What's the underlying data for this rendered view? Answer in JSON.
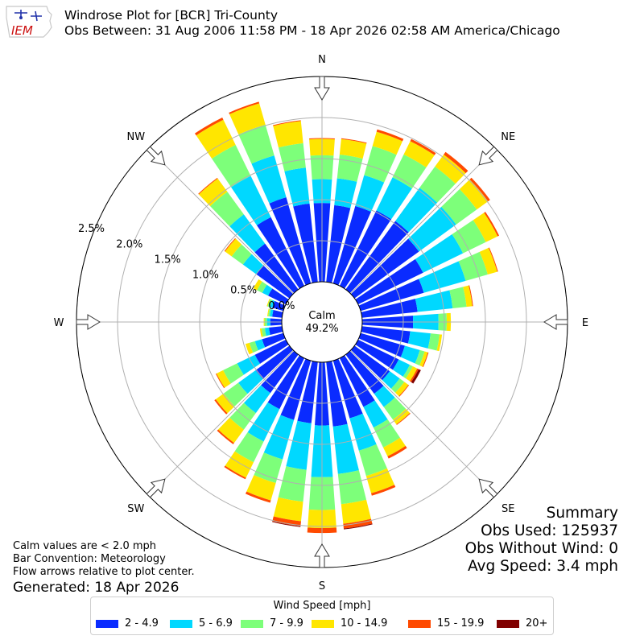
{
  "header": {
    "title": "Windrose Plot for [BCR] Tri-County",
    "subtitle": "Obs Between: 31 Aug 2006 11:58 PM - 18 Apr 2026 02:58 AM America/Chicago",
    "logo_text": "IEM"
  },
  "summary": {
    "heading": "Summary",
    "obs_used": "Obs Used: 125937",
    "obs_without_wind": "Obs Without Wind: 0",
    "avg_speed": "Avg Speed: 3.4 mph"
  },
  "notes": {
    "calm_note": "Calm values are < 2.0 mph",
    "bar_convention": "Bar Convention: Meteorology",
    "flow_arrows": "Flow arrows relative to plot center.",
    "generated": "Generated: 18 Apr 2026"
  },
  "chart_data": {
    "type": "windrose",
    "calm_label": "Calm",
    "calm_value": "49.2%",
    "cardinals": [
      "N",
      "NE",
      "E",
      "SE",
      "S",
      "SW",
      "W",
      "NW"
    ],
    "radial_ticks": [
      "0.0%",
      "0.5%",
      "1.0%",
      "1.5%",
      "2.0%",
      "2.5%"
    ],
    "radial_values": [
      0.0,
      0.5,
      1.0,
      1.5,
      2.0,
      2.5
    ],
    "rmax": 2.5,
    "direction_step_deg": 10,
    "legend_title": "Wind Speed [mph]",
    "bins": [
      {
        "label": "2 - 4.9",
        "color": "#0a2bff"
      },
      {
        "label": "5 - 6.9",
        "color": "#00d8ff"
      },
      {
        "label": "7 - 9.9",
        "color": "#7dff7a"
      },
      {
        "label": "10 - 14.9",
        "color": "#ffe600"
      },
      {
        "label": "15 - 19.9",
        "color": "#ff4a00"
      },
      {
        "label": "20+",
        "color": "#800000"
      }
    ],
    "directions": [
      {
        "dir": 0,
        "values": [
          0.96,
          0.29,
          0.29,
          0.2,
          0.01,
          0.0
        ]
      },
      {
        "dir": 10,
        "values": [
          0.94,
          0.33,
          0.29,
          0.19,
          0.01,
          0.0
        ]
      },
      {
        "dir": 20,
        "values": [
          0.98,
          0.39,
          0.37,
          0.18,
          0.03,
          0.0
        ]
      },
      {
        "dir": 30,
        "values": [
          1.02,
          0.45,
          0.31,
          0.18,
          0.03,
          0.0
        ]
      },
      {
        "dir": 40,
        "values": [
          1.03,
          0.5,
          0.32,
          0.18,
          0.04,
          0.0
        ]
      },
      {
        "dir": 50,
        "values": [
          0.97,
          0.56,
          0.31,
          0.17,
          0.03,
          0.0
        ]
      },
      {
        "dir": 60,
        "values": [
          0.88,
          0.54,
          0.31,
          0.16,
          0.02,
          0.0
        ]
      },
      {
        "dir": 70,
        "values": [
          0.8,
          0.53,
          0.28,
          0.12,
          0.01,
          0.0
        ]
      },
      {
        "dir": 80,
        "values": [
          0.68,
          0.43,
          0.17,
          0.07,
          0.01,
          0.0
        ]
      },
      {
        "dir": 90,
        "values": [
          0.62,
          0.31,
          0.1,
          0.05,
          0.0,
          0.0
        ]
      },
      {
        "dir": 100,
        "values": [
          0.59,
          0.25,
          0.11,
          0.03,
          0.0,
          0.0
        ]
      },
      {
        "dir": 110,
        "values": [
          0.56,
          0.19,
          0.06,
          0.04,
          0.01,
          0.0
        ]
      },
      {
        "dir": 120,
        "values": [
          0.55,
          0.15,
          0.04,
          0.06,
          0.02,
          0.03
        ]
      },
      {
        "dir": 130,
        "values": [
          0.53,
          0.15,
          0.07,
          0.06,
          0.01,
          0.0
        ]
      },
      {
        "dir": 140,
        "values": [
          0.59,
          0.2,
          0.19,
          0.07,
          0.01,
          0.0
        ]
      },
      {
        "dir": 150,
        "values": [
          0.66,
          0.28,
          0.27,
          0.12,
          0.03,
          0.0
        ]
      },
      {
        "dir": 160,
        "values": [
          0.73,
          0.41,
          0.32,
          0.22,
          0.03,
          0.0
        ]
      },
      {
        "dir": 170,
        "values": [
          0.79,
          0.58,
          0.37,
          0.24,
          0.06,
          0.01
        ]
      },
      {
        "dir": 180,
        "values": [
          0.77,
          0.63,
          0.4,
          0.22,
          0.06,
          0.0
        ]
      },
      {
        "dir": 190,
        "values": [
          0.75,
          0.57,
          0.39,
          0.24,
          0.06,
          0.01
        ]
      },
      {
        "dir": 200,
        "values": [
          0.75,
          0.5,
          0.3,
          0.22,
          0.03,
          0.0
        ]
      },
      {
        "dir": 210,
        "values": [
          0.69,
          0.44,
          0.28,
          0.21,
          0.02,
          0.0
        ]
      },
      {
        "dir": 220,
        "values": [
          0.58,
          0.3,
          0.25,
          0.2,
          0.02,
          0.0
        ]
      },
      {
        "dir": 230,
        "values": [
          0.51,
          0.26,
          0.22,
          0.12,
          0.02,
          0.0
        ]
      },
      {
        "dir": 240,
        "values": [
          0.42,
          0.24,
          0.19,
          0.09,
          0.01,
          0.0
        ]
      },
      {
        "dir": 250,
        "values": [
          0.27,
          0.09,
          0.07,
          0.05,
          0.0,
          0.0
        ]
      },
      {
        "dir": 260,
        "values": [
          0.16,
          0.05,
          0.04,
          0.02,
          0.0,
          0.0
        ]
      },
      {
        "dir": 270,
        "values": [
          0.14,
          0.04,
          0.03,
          0.01,
          0.0,
          0.0
        ]
      },
      {
        "dir": 280,
        "values": [
          0.12,
          0.03,
          0.02,
          0.01,
          0.0,
          0.0
        ]
      },
      {
        "dir": 290,
        "values": [
          0.14,
          0.03,
          0.03,
          0.01,
          0.0,
          0.0
        ]
      },
      {
        "dir": 300,
        "values": [
          0.24,
          0.08,
          0.07,
          0.05,
          0.0,
          0.0
        ]
      },
      {
        "dir": 310,
        "values": [
          0.5,
          0.2,
          0.17,
          0.1,
          0.01,
          0.0
        ]
      },
      {
        "dir": 320,
        "values": [
          0.69,
          0.44,
          0.34,
          0.2,
          0.01,
          0.0
        ]
      },
      {
        "dir": 330,
        "values": [
          0.93,
          0.56,
          0.42,
          0.34,
          0.03,
          0.0
        ]
      },
      {
        "dir": 340,
        "values": [
          1.09,
          0.53,
          0.39,
          0.27,
          0.02,
          0.0
        ]
      },
      {
        "dir": 350,
        "values": [
          0.96,
          0.44,
          0.3,
          0.27,
          0.01,
          0.0
        ]
      }
    ]
  }
}
